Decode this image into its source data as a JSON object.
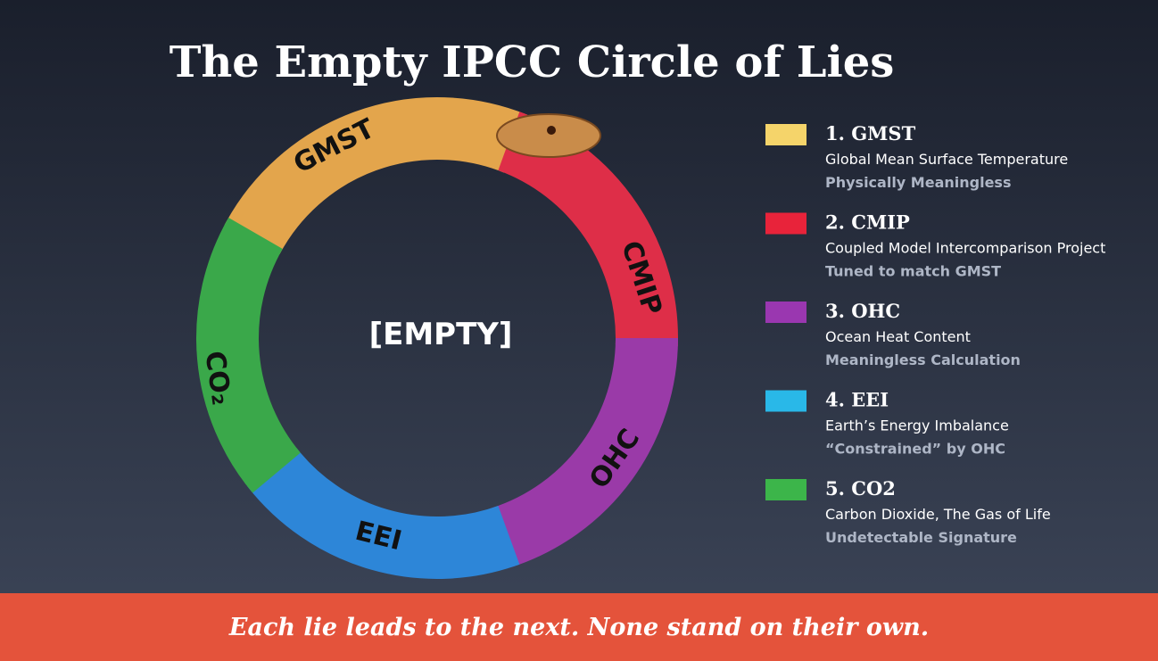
{
  "title": "The Empty IPCC Circle of Lies",
  "center_label": "[EMPTY]",
  "ring_labels": [
    "GMST",
    "CMIP",
    "OHC",
    "EEI",
    "CO₂"
  ],
  "legend": {
    "items": [
      {
        "heading": "1. GMST",
        "description": "Global Mean Surface Temperature",
        "note": "Physically Meaningless"
      },
      {
        "heading": "2. CMIP",
        "description": "Coupled Model Intercomparison Project",
        "note": "Tuned to match GMST"
      },
      {
        "heading": "3. OHC",
        "description": "Ocean Heat Content",
        "note": "Meaningless Calculation"
      },
      {
        "heading": "4. EEI",
        "description": "Earth’s Energy Imbalance",
        "note": "“Constrained” by OHC"
      },
      {
        "heading": "5. CO2",
        "description": "Carbon Dioxide, The Gas of Life",
        "note": "Undetectable Signature"
      }
    ]
  },
  "footer": "Each lie leads to the next. None stand on their own."
}
